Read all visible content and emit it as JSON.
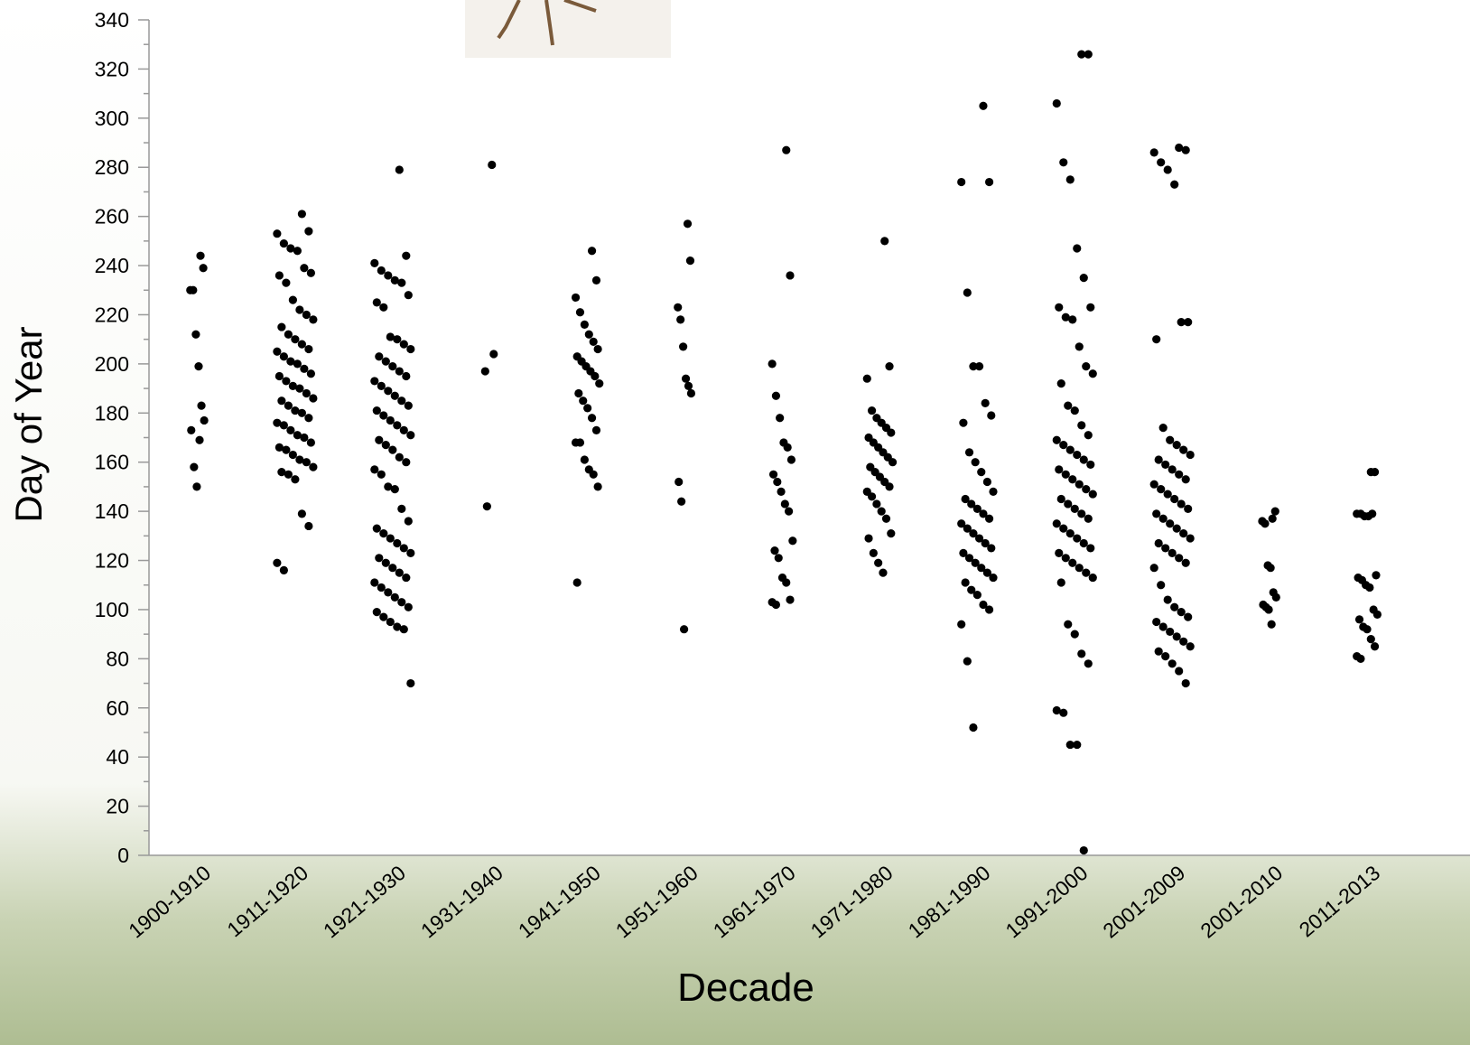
{
  "chart_data": {
    "type": "strip",
    "x_label": "Decade",
    "y_label": "Day of Year",
    "categories": [
      "1900-1910",
      "1911-1920",
      "1921-1930",
      "1931-1940",
      "1941-1950",
      "1951-1960",
      "1961-1970",
      "1971-1980",
      "1981-1990",
      "1991-2000",
      "2001-2009",
      "2001-2010",
      "2011-2013"
    ],
    "values": [
      [
        244,
        239,
        230,
        230,
        212,
        199,
        183,
        177,
        173,
        158,
        150,
        169
      ],
      [
        261,
        254,
        253,
        249,
        247,
        246,
        239,
        237,
        236,
        233,
        226,
        222,
        220,
        218,
        215,
        212,
        210,
        208,
        206,
        205,
        203,
        201,
        200,
        198,
        196,
        195,
        193,
        191,
        190,
        188,
        186,
        185,
        183,
        181,
        180,
        178,
        176,
        175,
        173,
        171,
        170,
        168,
        166,
        165,
        163,
        161,
        160,
        158,
        156,
        155,
        153,
        139,
        134,
        119,
        116
      ],
      [
        279,
        244,
        241,
        238,
        236,
        234,
        233,
        228,
        225,
        223,
        211,
        210,
        208,
        206,
        203,
        201,
        199,
        197,
        195,
        193,
        191,
        189,
        187,
        185,
        183,
        181,
        179,
        177,
        175,
        173,
        171,
        169,
        167,
        165,
        162,
        160,
        157,
        155,
        150,
        149,
        141,
        136,
        133,
        131,
        129,
        127,
        125,
        123,
        121,
        119,
        117,
        115,
        113,
        111,
        109,
        107,
        105,
        103,
        101,
        99,
        97,
        95,
        93,
        92,
        70
      ],
      [
        281,
        204,
        197,
        142
      ],
      [
        246,
        234,
        227,
        221,
        216,
        212,
        209,
        206,
        203,
        201,
        199,
        197,
        195,
        192,
        188,
        185,
        182,
        178,
        173,
        168,
        168,
        161,
        157,
        155,
        150,
        111
      ],
      [
        257,
        242,
        223,
        218,
        207,
        194,
        191,
        188,
        152,
        144,
        92
      ],
      [
        287,
        236,
        200,
        187,
        178,
        168,
        166,
        161,
        155,
        152,
        148,
        143,
        140,
        128,
        124,
        121,
        113,
        111,
        104,
        103,
        102
      ],
      [
        250,
        199,
        194,
        181,
        178,
        176,
        174,
        172,
        170,
        168,
        166,
        164,
        162,
        160,
        158,
        156,
        154,
        152,
        150,
        148,
        146,
        143,
        140,
        137,
        131,
        129,
        123,
        119,
        115
      ],
      [
        305,
        274,
        274,
        229,
        199,
        199,
        184,
        179,
        176,
        164,
        160,
        156,
        152,
        148,
        145,
        143,
        141,
        139,
        137,
        135,
        133,
        131,
        129,
        127,
        125,
        123,
        121,
        119,
        117,
        115,
        113,
        111,
        108,
        106,
        102,
        100,
        94,
        79,
        52
      ],
      [
        326,
        326,
        306,
        282,
        275,
        247,
        235,
        223,
        223,
        219,
        218,
        207,
        199,
        196,
        192,
        183,
        181,
        175,
        171,
        169,
        167,
        165,
        163,
        161,
        159,
        157,
        155,
        153,
        151,
        149,
        147,
        145,
        143,
        141,
        139,
        137,
        135,
        133,
        131,
        129,
        127,
        125,
        123,
        121,
        119,
        117,
        115,
        113,
        111,
        94,
        90,
        82,
        78,
        59,
        58,
        45,
        45,
        2
      ],
      [
        288,
        287,
        286,
        282,
        279,
        273,
        217,
        217,
        210,
        174,
        169,
        167,
        165,
        163,
        161,
        159,
        157,
        155,
        153,
        151,
        149,
        147,
        145,
        143,
        141,
        139,
        137,
        135,
        133,
        131,
        129,
        127,
        125,
        123,
        121,
        119,
        117,
        110,
        104,
        101,
        99,
        97,
        95,
        93,
        91,
        89,
        87,
        85,
        83,
        81,
        78,
        75,
        70
      ],
      [
        137,
        140,
        136,
        135,
        118,
        117,
        107,
        105,
        102,
        101,
        100,
        94
      ],
      [
        156,
        156,
        139,
        139,
        138,
        138,
        139,
        114,
        113,
        112,
        110,
        109,
        100,
        98,
        96,
        93,
        92,
        88,
        85,
        81,
        80
      ]
    ],
    "color": "#000000",
    "ylim": [
      0,
      340
    ],
    "yticks": [
      0,
      20,
      40,
      60,
      80,
      100,
      120,
      140,
      160,
      180,
      200,
      220,
      240,
      260,
      280,
      300,
      320,
      340
    ],
    "yminorticks": [
      10,
      30,
      50,
      70,
      90,
      110,
      130,
      150,
      170,
      190,
      210,
      230,
      250,
      270,
      290,
      310,
      330
    ]
  }
}
